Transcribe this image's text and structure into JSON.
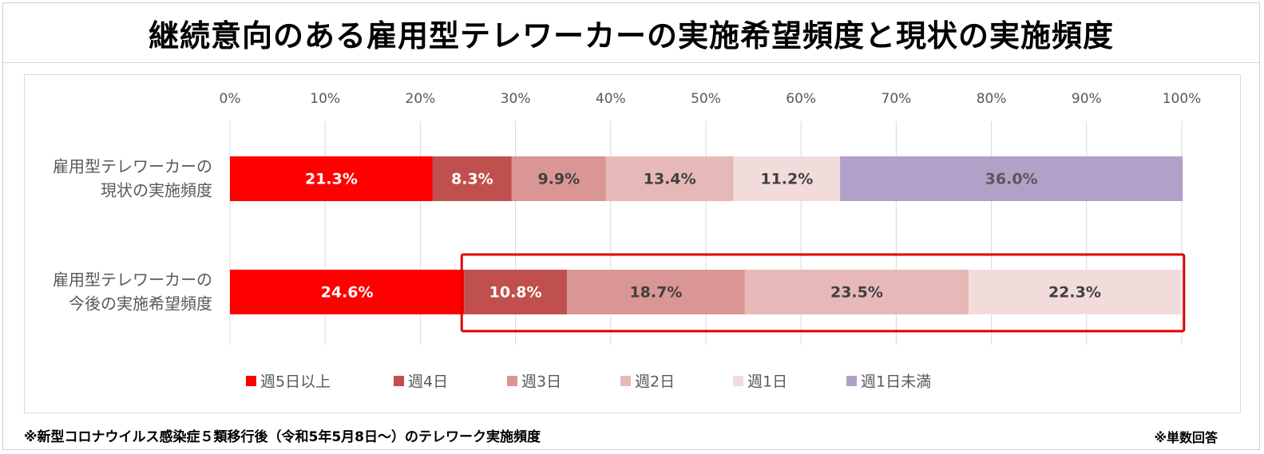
{
  "title": "継続意向のある雇用型テレワーカーの実施希望頻度と現状の実施頻度",
  "footnote": "※新型コロナウイルス感染症５類移行後（令和5年5月8日～）のテレワーク実施頻度",
  "footnote_right": "※単数回答",
  "colors": {
    "週5日以上": "#ff0000",
    "週4日": "#c0504d",
    "週3日": "#da9694",
    "週2日": "#e6b9b8",
    "週1日": "#f2dcdb",
    "週1日未満": "#b1a0c7",
    "highlight_box": "#e00000"
  },
  "chart_data": {
    "type": "bar",
    "orientation": "horizontal",
    "stacked": true,
    "percent_axis": true,
    "xlim": [
      0,
      100
    ],
    "x_ticks": [
      "0%",
      "10%",
      "20%",
      "30%",
      "40%",
      "50%",
      "60%",
      "70%",
      "80%",
      "90%",
      "100%"
    ],
    "grid": true,
    "legend_position": "bottom",
    "categories": [
      [
        "雇用型テレワーカーの",
        "現状の実施頻度"
      ],
      [
        "雇用型テレワーカーの",
        "今後の実施希望頻度"
      ]
    ],
    "series": [
      {
        "name": "週5日以上",
        "values": [
          21.3,
          24.6
        ],
        "labels": [
          "21.3%",
          "24.6%"
        ],
        "label_color": "#ffffff"
      },
      {
        "name": "週4日",
        "values": [
          8.3,
          10.8
        ],
        "labels": [
          "8.3%",
          "10.8%"
        ],
        "label_color": "#ffffff"
      },
      {
        "name": "週3日",
        "values": [
          9.9,
          18.7
        ],
        "labels": [
          "9.9%",
          "18.7%"
        ],
        "label_color": "#404040"
      },
      {
        "name": "週2日",
        "values": [
          13.4,
          23.5
        ],
        "labels": [
          "13.4%",
          "23.5%"
        ],
        "label_color": "#404040"
      },
      {
        "name": "週1日",
        "values": [
          11.2,
          22.3
        ],
        "labels": [
          "11.2%",
          "22.3%"
        ],
        "label_color": "#404040"
      },
      {
        "name": "週1日未満",
        "values": [
          36.0,
          0
        ],
        "labels": [
          "36.0%",
          ""
        ],
        "label_color": "#595959"
      }
    ],
    "highlight": {
      "row": 1,
      "from_series": 1,
      "to_series": 4
    }
  }
}
